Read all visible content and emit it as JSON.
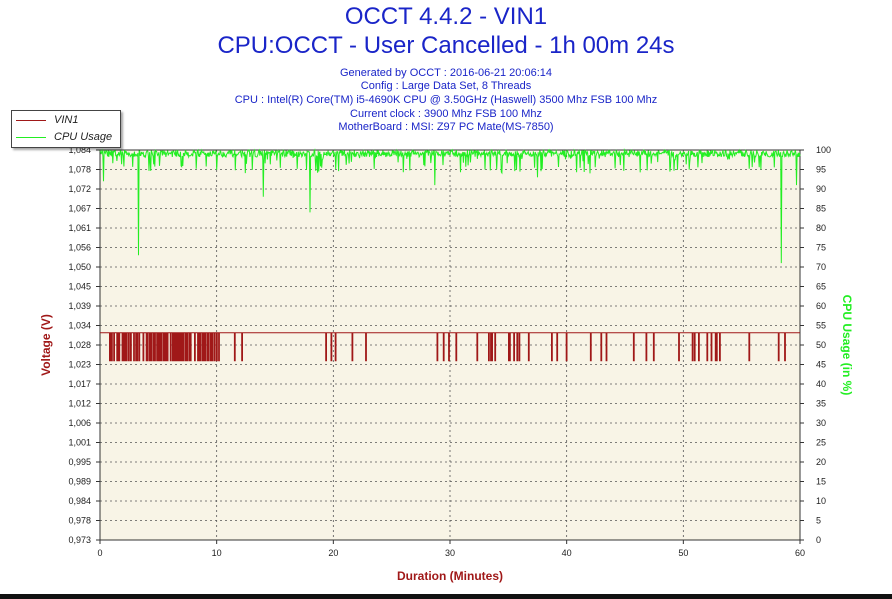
{
  "header": {
    "title": "OCCT 4.4.2 - VIN1",
    "subtitle": "CPU:OCCT - User Cancelled - 1h 00m 24s",
    "info_lines": [
      "Generated by OCCT : 2016-06-21 20:06:14",
      "Config : Large Data Set, 8 Threads",
      "CPU : Intel(R) Core(TM) i5-4690K CPU @ 3.50GHz (Haswell) 3500 Mhz FSB 100 Mhz",
      "Current clock : 3900 Mhz FSB 100 Mhz",
      "MotherBoard : MSI: Z97 PC Mate(MS-7850)"
    ]
  },
  "legend": {
    "items": [
      {
        "label": "VIN1",
        "color": "#a01818"
      },
      {
        "label": "CPU Usage",
        "color": "#22ee22"
      }
    ]
  },
  "chart_data": {
    "type": "line",
    "xlabel": "Duration (Minutes)",
    "ylabel_left": "Voltage (V)",
    "ylabel_right": "CPU Usage (in %)",
    "xlim": [
      0,
      60
    ],
    "x_ticks": [
      0,
      10,
      20,
      30,
      40,
      50,
      60
    ],
    "ylim_left": [
      0.973,
      1.084
    ],
    "y_ticks_left": [
      "0,973",
      "0,978",
      "0,984",
      "0,989",
      "0,995",
      "1,001",
      "1,006",
      "1,012",
      "1,017",
      "1,023",
      "1,028",
      "1,034",
      "1,039",
      "1,045",
      "1,050",
      "1,056",
      "1,061",
      "1,067",
      "1,072",
      "1,078",
      "1,084"
    ],
    "ylim_right": [
      0,
      100
    ],
    "y_ticks_right": [
      0,
      5,
      10,
      15,
      20,
      25,
      30,
      35,
      40,
      45,
      50,
      55,
      60,
      65,
      70,
      75,
      80,
      85,
      90,
      95,
      100
    ],
    "grid": true,
    "legend_position": "top-left",
    "background_color": "#f8f4e6",
    "series": [
      {
        "name": "VIN1",
        "axis": "left",
        "color": "#a01818",
        "levels": [
          1.024,
          1.032
        ],
        "active_segments": [
          [
            0.5,
            13.0
          ],
          [
            18.0,
            23.0
          ],
          [
            27.0,
            37.0
          ],
          [
            38.0,
            59.5
          ]
        ],
        "dense_segments": [
          [
            1.0,
            10.5
          ]
        ],
        "typical_value": 1.032
      },
      {
        "name": "CPU Usage",
        "axis": "right",
        "color": "#22ee22",
        "typical_value": 99,
        "dips": [
          {
            "x": 0.3,
            "y": 92
          },
          {
            "x": 3.3,
            "y": 73
          },
          {
            "x": 14.0,
            "y": 88
          },
          {
            "x": 18.0,
            "y": 84
          },
          {
            "x": 28.7,
            "y": 91
          },
          {
            "x": 37.5,
            "y": 93
          },
          {
            "x": 42.0,
            "y": 94
          },
          {
            "x": 58.4,
            "y": 71
          },
          {
            "x": 59.7,
            "y": 91
          }
        ]
      }
    ]
  }
}
